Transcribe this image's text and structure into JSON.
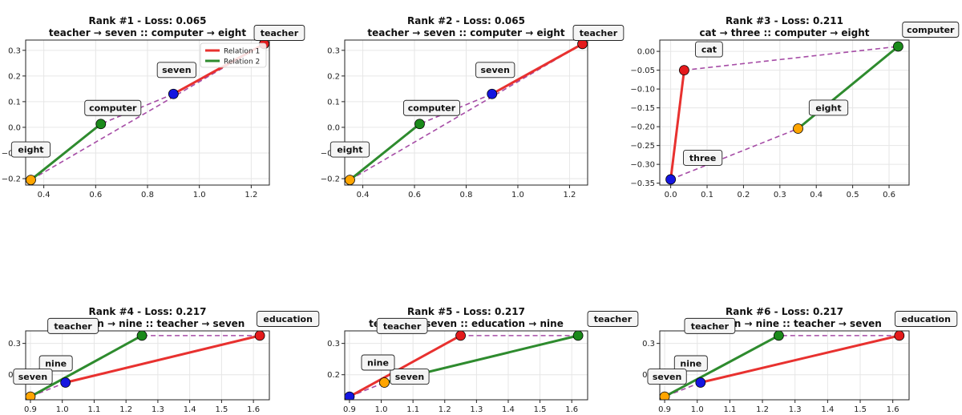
{
  "figure": {
    "background": "#ffffff",
    "colors": {
      "relation1": "#e8312f",
      "relation2": "#2e8b2e",
      "diagonal": "#a64ca6",
      "grid": "#e6e6e6",
      "marker_red": "#e41a1c",
      "marker_green": "#1a8a1a",
      "marker_blue": "#1515e0",
      "marker_orange": "#ffa500"
    }
  },
  "chart_data": [
    {
      "type": "scatter",
      "title": "Rank #1 - Loss: 0.065",
      "subtitle": "teacher → seven :: computer → eight",
      "xlim": [
        0.33,
        1.27
      ],
      "ylim": [
        -0.225,
        0.34
      ],
      "xticks": [
        0.4,
        0.6,
        0.8,
        1.0,
        1.2
      ],
      "xtick_labels": [
        "0.4",
        "0.6",
        "0.8",
        "1.0",
        "1.2"
      ],
      "yticks": [
        -0.2,
        -0.1,
        0.0,
        0.1,
        0.2,
        0.3
      ],
      "ytick_labels": [
        "−0.2",
        "−0.1",
        "0.0",
        "0.1",
        "0.2",
        "0.3"
      ],
      "grid": true,
      "legend": {
        "placement": "top-right",
        "entries": [
          "Relation 1",
          "Relation 2"
        ]
      },
      "points": [
        {
          "label": "teacher",
          "x": 1.25,
          "y": 0.325,
          "color": "red"
        },
        {
          "label": "seven",
          "x": 0.9,
          "y": 0.13,
          "color": "blue"
        },
        {
          "label": "computer",
          "x": 0.62,
          "y": 0.013,
          "color": "green"
        },
        {
          "label": "eight",
          "x": 0.35,
          "y": -0.205,
          "color": "orange"
        }
      ],
      "relation1": [
        [
          1.25,
          0.325
        ],
        [
          0.9,
          0.13
        ]
      ],
      "relation2": [
        [
          0.62,
          0.013
        ],
        [
          0.35,
          -0.205
        ]
      ],
      "diagonals": [
        [
          [
            1.25,
            0.325
          ],
          [
            0.35,
            -0.205
          ]
        ],
        [
          [
            0.9,
            0.13
          ],
          [
            0.62,
            0.013
          ]
        ]
      ]
    },
    {
      "type": "scatter",
      "title": "Rank #2 - Loss: 0.065",
      "subtitle": "teacher → seven :: computer → eight",
      "xlim": [
        0.33,
        1.27
      ],
      "ylim": [
        -0.225,
        0.34
      ],
      "xticks": [
        0.4,
        0.6,
        0.8,
        1.0,
        1.2
      ],
      "xtick_labels": [
        "0.4",
        "0.6",
        "0.8",
        "1.0",
        "1.2"
      ],
      "yticks": [
        -0.2,
        -0.1,
        0.0,
        0.1,
        0.2,
        0.3
      ],
      "ytick_labels": [
        "−0.2",
        "−0.1",
        "0.0",
        "0.1",
        "0.2",
        "0.3"
      ],
      "grid": true,
      "points": [
        {
          "label": "teacher",
          "x": 1.25,
          "y": 0.325,
          "color": "red"
        },
        {
          "label": "seven",
          "x": 0.9,
          "y": 0.13,
          "color": "blue"
        },
        {
          "label": "computer",
          "x": 0.62,
          "y": 0.013,
          "color": "green"
        },
        {
          "label": "eight",
          "x": 0.35,
          "y": -0.205,
          "color": "orange"
        }
      ],
      "relation1": [
        [
          1.25,
          0.325
        ],
        [
          0.9,
          0.13
        ]
      ],
      "relation2": [
        [
          0.62,
          0.013
        ],
        [
          0.35,
          -0.205
        ]
      ],
      "diagonals": [
        [
          [
            1.25,
            0.325
          ],
          [
            0.35,
            -0.205
          ]
        ],
        [
          [
            0.9,
            0.13
          ],
          [
            0.62,
            0.013
          ]
        ]
      ]
    },
    {
      "type": "scatter",
      "title": "Rank #3 - Loss: 0.211",
      "subtitle": "cat → three :: computer → eight",
      "xlim": [
        -0.03,
        0.655
      ],
      "ylim": [
        -0.355,
        0.03
      ],
      "xticks": [
        0.0,
        0.1,
        0.2,
        0.3,
        0.4,
        0.5,
        0.6
      ],
      "xtick_labels": [
        "0.0",
        "0.1",
        "0.2",
        "0.3",
        "0.4",
        "0.5",
        "0.6"
      ],
      "yticks": [
        -0.35,
        -0.3,
        -0.25,
        -0.2,
        -0.15,
        -0.1,
        -0.05,
        0.0
      ],
      "ytick_labels": [
        "−0.35",
        "−0.30",
        "−0.25",
        "−0.20",
        "−0.15",
        "−0.10",
        "−0.05",
        "0.00"
      ],
      "grid": true,
      "points": [
        {
          "label": "cat",
          "x": 0.037,
          "y": -0.05,
          "color": "red"
        },
        {
          "label": "three",
          "x": 0.0,
          "y": -0.34,
          "color": "blue"
        },
        {
          "label": "computer",
          "x": 0.625,
          "y": 0.013,
          "color": "green"
        },
        {
          "label": "eight",
          "x": 0.35,
          "y": -0.205,
          "color": "orange"
        }
      ],
      "relation1": [
        [
          0.037,
          -0.05
        ],
        [
          0.0,
          -0.34
        ]
      ],
      "relation2": [
        [
          0.625,
          0.013
        ],
        [
          0.35,
          -0.205
        ]
      ],
      "diagonals": [
        [
          [
            0.037,
            -0.05
          ],
          [
            0.625,
            0.013
          ]
        ],
        [
          [
            0.0,
            -0.34
          ],
          [
            0.35,
            -0.205
          ]
        ]
      ]
    },
    {
      "type": "scatter",
      "title": "Rank #4 - Loss: 0.217",
      "subtitle": "education → nine :: teacher → seven",
      "xlim": [
        0.885,
        1.65
      ],
      "ylim": [
        0.12,
        0.34
      ],
      "xticks": [
        0.9,
        1.0,
        1.1,
        1.2,
        1.3,
        1.4,
        1.5,
        1.6
      ],
      "xtick_labels": [
        "0.9",
        "1.0",
        "1.1",
        "1.2",
        "1.3",
        "1.4",
        "1.5",
        "1.6"
      ],
      "yticks": [
        0.2,
        0.3
      ],
      "ytick_labels": [
        "0.2",
        "0.3"
      ],
      "grid": true,
      "points": [
        {
          "label": "education",
          "x": 1.62,
          "y": 0.325,
          "color": "red"
        },
        {
          "label": "nine",
          "x": 1.01,
          "y": 0.175,
          "color": "blue"
        },
        {
          "label": "teacher",
          "x": 1.25,
          "y": 0.325,
          "color": "green"
        },
        {
          "label": "seven",
          "x": 0.9,
          "y": 0.13,
          "color": "orange"
        }
      ],
      "relation1": [
        [
          1.62,
          0.325
        ],
        [
          1.01,
          0.175
        ]
      ],
      "relation2": [
        [
          1.25,
          0.325
        ],
        [
          0.9,
          0.13
        ]
      ],
      "diagonals": [
        [
          [
            1.62,
            0.325
          ],
          [
            1.25,
            0.325
          ]
        ],
        [
          [
            1.01,
            0.175
          ],
          [
            0.9,
            0.13
          ]
        ]
      ]
    },
    {
      "type": "scatter",
      "title": "Rank #5 - Loss: 0.217",
      "subtitle": "teacher → seven :: education → nine",
      "xlim": [
        0.885,
        1.65
      ],
      "ylim": [
        0.12,
        0.34
      ],
      "xticks": [
        0.9,
        1.0,
        1.1,
        1.2,
        1.3,
        1.4,
        1.5,
        1.6
      ],
      "xtick_labels": [
        "0.9",
        "1.0",
        "1.1",
        "1.2",
        "1.3",
        "1.4",
        "1.5",
        "1.6"
      ],
      "yticks": [
        0.2,
        0.3
      ],
      "ytick_labels": [
        "0.2",
        "0.3"
      ],
      "grid": true,
      "points": [
        {
          "label": "teacher",
          "x": 1.25,
          "y": 0.325,
          "color": "red"
        },
        {
          "label": "seven",
          "x": 0.9,
          "y": 0.13,
          "color": "blue"
        },
        {
          "label": "education",
          "x": 1.62,
          "y": 0.325,
          "color": "green"
        },
        {
          "label": "nine",
          "x": 1.01,
          "y": 0.175,
          "color": "orange"
        }
      ],
      "relation1": [
        [
          1.25,
          0.325
        ],
        [
          0.9,
          0.13
        ]
      ],
      "relation2": [
        [
          1.62,
          0.325
        ],
        [
          1.01,
          0.175
        ]
      ],
      "diagonals": [
        [
          [
            1.25,
            0.325
          ],
          [
            1.62,
            0.325
          ]
        ],
        [
          [
            0.9,
            0.13
          ],
          [
            1.01,
            0.175
          ]
        ]
      ]
    },
    {
      "type": "scatter",
      "title": "Rank #6 - Loss: 0.217",
      "subtitle": "education → nine :: teacher → seven",
      "xlim": [
        0.885,
        1.65
      ],
      "ylim": [
        0.12,
        0.34
      ],
      "xticks": [
        0.9,
        1.0,
        1.1,
        1.2,
        1.3,
        1.4,
        1.5,
        1.6
      ],
      "xtick_labels": [
        "0.9",
        "1.0",
        "1.1",
        "1.2",
        "1.3",
        "1.4",
        "1.5",
        "1.6"
      ],
      "yticks": [
        0.2,
        0.3
      ],
      "ytick_labels": [
        "0.2",
        "0.3"
      ],
      "grid": true,
      "points": [
        {
          "label": "education",
          "x": 1.62,
          "y": 0.325,
          "color": "red"
        },
        {
          "label": "nine",
          "x": 1.01,
          "y": 0.175,
          "color": "blue"
        },
        {
          "label": "teacher",
          "x": 1.25,
          "y": 0.325,
          "color": "green"
        },
        {
          "label": "seven",
          "x": 0.9,
          "y": 0.13,
          "color": "orange"
        }
      ],
      "relation1": [
        [
          1.62,
          0.325
        ],
        [
          1.01,
          0.175
        ]
      ],
      "relation2": [
        [
          1.25,
          0.325
        ],
        [
          0.9,
          0.13
        ]
      ],
      "diagonals": [
        [
          [
            1.62,
            0.325
          ],
          [
            1.25,
            0.325
          ]
        ],
        [
          [
            1.01,
            0.175
          ],
          [
            0.9,
            0.13
          ]
        ]
      ]
    }
  ]
}
